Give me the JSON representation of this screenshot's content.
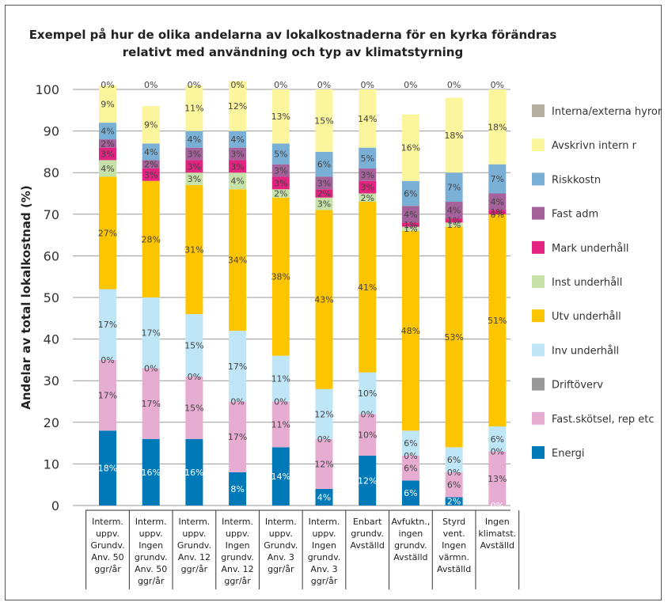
{
  "chart_data": {
    "type": "bar",
    "stacked": true,
    "title_lines": [
      "Exempel på hur de olika andelarna av lokalkostnaderna för en kyrka förändras",
      "relativt med användning och typ av klimatstyrning"
    ],
    "ylabel": "Andelar av total lokalkostnad (%)",
    "ylim": [
      0,
      100
    ],
    "yticks": [
      "0",
      "10",
      "20",
      "30",
      "40",
      "50",
      "60",
      "70",
      "80",
      "90",
      "100"
    ],
    "categories": [
      [
        "Interm.",
        "uppv.",
        "Grundv.",
        "Anv. 50",
        "ggr/år"
      ],
      [
        "Interm.",
        "uppv.",
        "Ingen",
        "grundv.",
        "Anv. 50",
        "ggr/år"
      ],
      [
        "Interm.",
        "uppv.",
        "Grundv.",
        "Anv. 12",
        "ggr/år"
      ],
      [
        "Interm.",
        "uppv.",
        "Ingen",
        "grundv.",
        "Anv. 12",
        "ggr/år"
      ],
      [
        "Interm.",
        "uppv.",
        "Grundv.",
        "Anv. 3",
        "ggr/år"
      ],
      [
        "Interm.",
        "uppv.",
        "Ingen",
        "grundv.",
        "Anv. 3",
        "ggr/år"
      ],
      [
        "Enbart",
        "grundv.",
        "Avställd"
      ],
      [
        "Avfuktn.,",
        "ingen",
        "grundv.",
        "Avställd"
      ],
      [
        "Styrd",
        "vent.",
        "Ingen",
        "värmn.",
        "Avställd"
      ],
      [
        "Ingen",
        "klimatst.",
        "Avställd"
      ]
    ],
    "series": [
      {
        "name": "Energi",
        "color": "#0079b8",
        "label_color": "#ffffff",
        "values": [
          18,
          16,
          16,
          8,
          14,
          4,
          12,
          6,
          2,
          0
        ],
        "labels": [
          "18%",
          "16%",
          "16%",
          "8%",
          "14%",
          "4%",
          "12%",
          "6%",
          "2%",
          "0%"
        ]
      },
      {
        "name": "Fast.skötsel, rep etc",
        "color": "#e6acd2",
        "label_color": "#444444",
        "values": [
          17,
          17,
          15,
          17,
          11,
          12,
          10,
          6,
          6,
          13
        ],
        "labels": [
          "17%",
          "17%",
          "15%",
          "17%",
          "11%",
          "12%",
          "10%",
          "6%",
          "6%",
          "13%"
        ]
      },
      {
        "name": "Driftöverv",
        "color": "#999999",
        "label_color": "#444444",
        "values": [
          0,
          0,
          0,
          0,
          0,
          0,
          0,
          0,
          0,
          0
        ],
        "labels": [
          "0%",
          "0%",
          "0%",
          "0%",
          "0%",
          "0%",
          "0%",
          "0%",
          "0%",
          "0%"
        ]
      },
      {
        "name": "Inv underhåll",
        "color": "#bfe6f7",
        "label_color": "#444444",
        "values": [
          17,
          17,
          15,
          17,
          11,
          12,
          10,
          6,
          6,
          6
        ],
        "labels": [
          "17%",
          "17%",
          "15%",
          "17%",
          "11%",
          "12%",
          "10%",
          "6%",
          "6%",
          "6%"
        ]
      },
      {
        "name": "Utv underhåll",
        "color": "#fdc400",
        "label_color": "#444444",
        "values": [
          27,
          28,
          31,
          34,
          38,
          43,
          41,
          48,
          53,
          51
        ],
        "labels": [
          "27%",
          "28%",
          "31%",
          "34%",
          "38%",
          "43%",
          "41%",
          "48%",
          "53%",
          "51%"
        ]
      },
      {
        "name": "Inst underhåll",
        "color": "#c6e2a8",
        "label_color": "#444444",
        "values": [
          4,
          0,
          3,
          4,
          2,
          3,
          2,
          1,
          1,
          0
        ],
        "labels": [
          "4%",
          "",
          "3%",
          "4%",
          "2%",
          "3%",
          "2%",
          "1%",
          "1%",
          "0%"
        ]
      },
      {
        "name": "Mark underhåll",
        "color": "#e2237f",
        "label_color": "#444444",
        "values": [
          3,
          3,
          3,
          3,
          3,
          2,
          3,
          1,
          1,
          1
        ],
        "labels": [
          "3%",
          "3%",
          "3%",
          "3%",
          "3%",
          "2%",
          "3%",
          "1%",
          "1%",
          "1%"
        ]
      },
      {
        "name": "Fast adm",
        "color": "#a5619a",
        "label_color": "#444444",
        "values": [
          2,
          2,
          3,
          3,
          3,
          3,
          3,
          4,
          4,
          4
        ],
        "labels": [
          "2%",
          "2%",
          "3%",
          "3%",
          "3%",
          "3%",
          "3%",
          "4%",
          "4%",
          "4%"
        ]
      },
      {
        "name": "Riskkostn",
        "color": "#7aafd6",
        "label_color": "#444444",
        "values": [
          4,
          4,
          4,
          4,
          5,
          6,
          5,
          6,
          7,
          7
        ],
        "labels": [
          "4%",
          "4%",
          "4%",
          "4%",
          "5%",
          "6%",
          "5%",
          "6%",
          "7%",
          "7%"
        ]
      },
      {
        "name": "Avskrivn intern r",
        "color": "#fbf59e",
        "label_color": "#444444",
        "values": [
          9,
          9,
          11,
          12,
          13,
          15,
          14,
          16,
          18,
          18
        ],
        "labels": [
          "9%",
          "9%",
          "11%",
          "12%",
          "13%",
          "15%",
          "14%",
          "16%",
          "18%",
          "18%"
        ]
      },
      {
        "name": "Interna/externa hyror",
        "color": "#b5ad9e",
        "label_color": "#444444",
        "values": [
          0,
          0,
          0,
          0,
          0,
          0,
          0,
          0,
          0,
          0
        ],
        "labels": [
          "0%",
          "0%",
          "0%",
          "0%",
          "0%",
          "0%",
          "0%",
          "0%",
          "0%",
          "0%"
        ]
      }
    ],
    "legend_order": [
      "Interna/externa hyror",
      "Avskrivn intern r",
      "Riskkostn",
      "Fast adm",
      "Mark underhåll",
      "Inst underhåll",
      "Utv underhåll",
      "Inv underhåll",
      "Driftöverv",
      "Fast.skötsel, rep etc",
      "Energi"
    ],
    "legend_position": "right"
  }
}
